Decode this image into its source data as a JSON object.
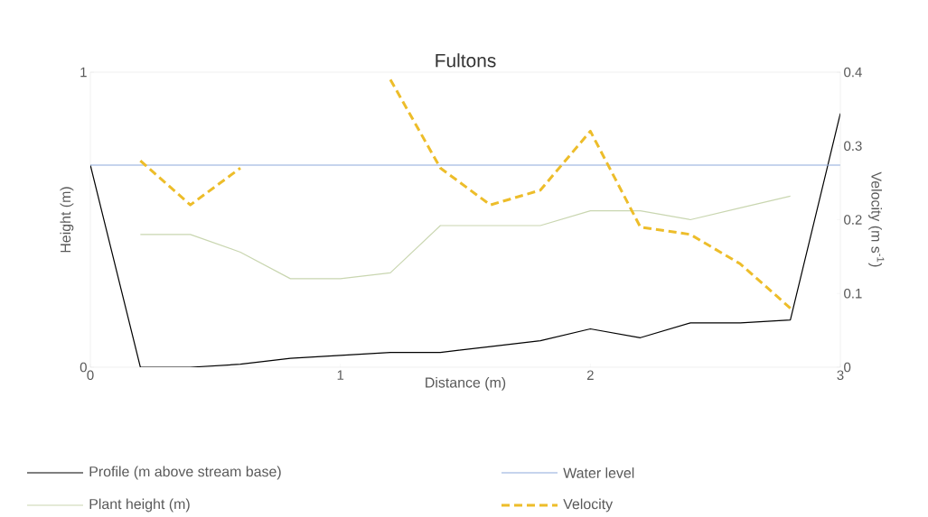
{
  "chart_data": {
    "type": "line",
    "title": "Fultons",
    "xlabel": "Distance (m)",
    "ylabel": "Height (m)",
    "y2label": "Velocity (m s$^{-1}$)",
    "xlim": [
      0,
      3
    ],
    "xticks": [
      0,
      1,
      2,
      3
    ],
    "ylim": [
      0,
      1
    ],
    "yticks": [
      0,
      1
    ],
    "y2lim": [
      0,
      0.4
    ],
    "y2ticks": [
      0,
      0.1,
      0.2,
      0.3,
      0.4
    ],
    "legend": "bottom",
    "series": [
      {
        "name": "Profile (m above stream base)",
        "color": "#000000",
        "x": [
          0,
          0.2,
          0.4,
          0.6,
          0.8,
          1.0,
          1.2,
          1.4,
          1.6,
          1.8,
          2.0,
          2.2,
          2.4,
          2.6,
          2.8,
          3.0
        ],
        "values": [
          0.685,
          0,
          0,
          0.01,
          0.03,
          0.04,
          0.05,
          0.05,
          0.07,
          0.09,
          0.13,
          0.1,
          0.15,
          0.15,
          0.16,
          0.86
        ],
        "line_style": "solid"
      },
      {
        "name": "Water level",
        "color": "#8eaadb",
        "x": [
          0,
          3
        ],
        "values": [
          0.685,
          0.685
        ],
        "line_style": "solid"
      },
      {
        "name": "Plant height (m)",
        "color": "#c9d6b0",
        "x": [
          0.2,
          0.4,
          0.6,
          0.8,
          1.0,
          1.2,
          1.4,
          1.6,
          1.8,
          2.0,
          2.2,
          2.4,
          2.6,
          2.8
        ],
        "values": [
          0.45,
          0.45,
          0.39,
          0.3,
          0.3,
          0.32,
          0.48,
          0.48,
          0.48,
          0.53,
          0.53,
          0.5,
          0.54,
          0.58
        ],
        "line_style": "solid"
      },
      {
        "name": "Velocity",
        "color": "#edbd2a",
        "axis": "y2",
        "x": [
          0.2,
          0.4,
          0.6,
          0.8,
          1.0,
          1.2,
          1.4,
          1.6,
          1.8,
          2.0,
          2.2,
          2.4,
          2.6,
          2.8
        ],
        "values": [
          0.28,
          0.22,
          0.27,
          null,
          null,
          0.39,
          0.27,
          0.22,
          0.24,
          0.32,
          0.19,
          0.18,
          0.14,
          0.08
        ],
        "line_style": "dashed"
      }
    ]
  }
}
